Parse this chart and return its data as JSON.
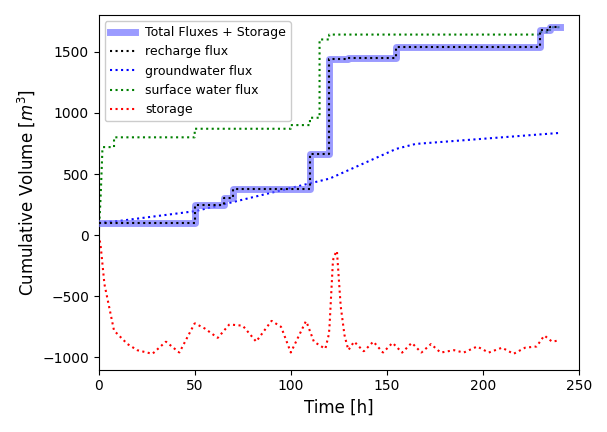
{
  "xlabel": "Time [h]",
  "ylabel": "Cumulative Volume [$m^3$]",
  "xlim": [
    0,
    250
  ],
  "ylim": [
    -1100,
    1800
  ],
  "xticks": [
    0,
    50,
    100,
    150,
    200,
    250
  ],
  "yticks": [
    -1000,
    -500,
    0,
    500,
    1000,
    1500
  ],
  "legend_loc": "upper left",
  "series": {
    "total": {
      "label": "Total Fluxes + Storage",
      "color": "#6666ff",
      "linewidth": 5.0,
      "linestyle": "solid",
      "alpha": 0.65,
      "zorder": 3
    },
    "recharge": {
      "label": "recharge flux",
      "color": "black",
      "linewidth": 1.5,
      "linestyle": "dotted",
      "zorder": 4
    },
    "groundwater": {
      "label": "groundwater flux",
      "color": "blue",
      "linewidth": 1.5,
      "linestyle": "dotted",
      "zorder": 2
    },
    "surface_water": {
      "label": "surface water flux",
      "color": "green",
      "linewidth": 1.5,
      "linestyle": "dotted",
      "zorder": 2
    },
    "storage": {
      "label": "storage",
      "color": "red",
      "linewidth": 1.5,
      "linestyle": "dotted",
      "zorder": 2
    }
  }
}
